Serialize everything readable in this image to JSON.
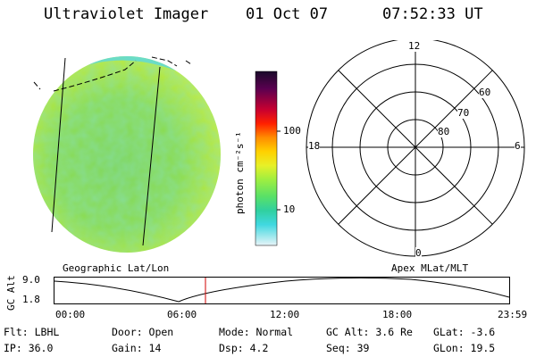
{
  "header": {
    "instrument": "Ultraviolet Imager",
    "date": "01 Oct 07",
    "time": "07:52:33 UT"
  },
  "colorbar": {
    "unit_label": "photon cm⁻²s⁻¹",
    "ticks": [
      "100",
      "10"
    ],
    "colors": [
      "#1a0a2a",
      "#5a0050",
      "#a00040",
      "#d00020",
      "#ff2000",
      "#ff7a00",
      "#ffb800",
      "#ffe400",
      "#e0f030",
      "#a0f040",
      "#60e060",
      "#30d090",
      "#30d8d8",
      "#90e0f0",
      "#e0f0f8"
    ]
  },
  "polar_plot": {
    "mlt_labels": {
      "top": "12",
      "right": "6",
      "bottom": "0",
      "left": "18"
    },
    "lat_labels": [
      "60",
      "70",
      "80"
    ]
  },
  "timeline": {
    "left_label": "Geographic Lat/Lon",
    "right_label": "Apex MLat/MLT",
    "y_axis_title": "GC Alt",
    "y_ticks": [
      "9.0",
      "1.8"
    ],
    "x_ticks": [
      "00:00",
      "06:00",
      "12:00",
      "18:00",
      "23:59"
    ],
    "current_marker_color": "#d00000"
  },
  "info": {
    "filter": "Flt: LBHL",
    "ip": "IP: 36.0",
    "door": "Door: Open",
    "gain": "Gain: 14",
    "mode": "Mode: Normal",
    "dsp": "Dsp:    4.2",
    "gc_alt": "GC Alt: 3.6 Re",
    "seq": "Seq: 39",
    "glat": "GLat:  -3.6",
    "glon": "GLon:  19.5"
  }
}
